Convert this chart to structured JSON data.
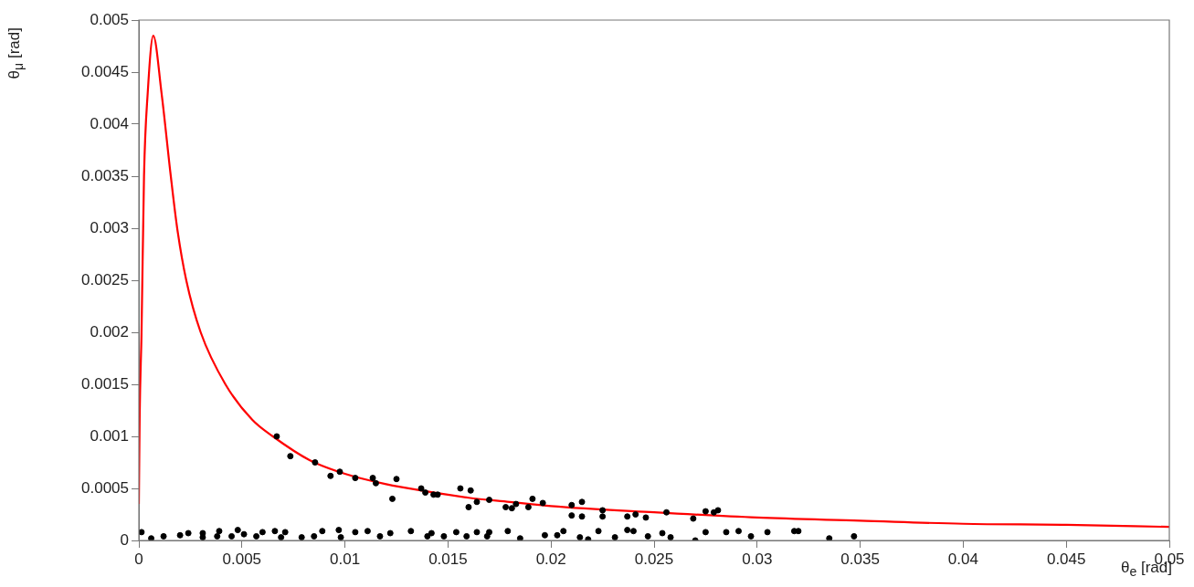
{
  "chart_data": {
    "type": "scatter",
    "xlabel": "θ$_{e}$ [rad]",
    "ylabel": "θ$_{μ}$ [rad]",
    "xlim": [
      0,
      0.05
    ],
    "ylim": [
      0,
      0.005
    ],
    "xticks": [
      0,
      0.005,
      0.01,
      0.015,
      0.02,
      0.025,
      0.03,
      0.035,
      0.04,
      0.045,
      0.05
    ],
    "yticks": [
      0,
      0.0005,
      0.001,
      0.0015,
      0.002,
      0.0025,
      0.003,
      0.0035,
      0.004,
      0.0045,
      0.005
    ],
    "grid": false,
    "legend": false,
    "series": [
      {
        "type": "line",
        "color": "#ff0000",
        "marker": "none",
        "line_style": "solid",
        "x": [
          0,
          4e-05,
          0.00013,
          0.00025,
          0.00043,
          0.0007,
          0.0011,
          0.00155,
          0.00186,
          0.0023,
          0.003,
          0.0042,
          0.0055,
          0.0065,
          0.0083,
          0.01,
          0.012,
          0.014,
          0.016,
          0.018,
          0.02,
          0.025,
          0.03,
          0.035,
          0.04,
          0.045,
          0.05
        ],
        "values": [
          0.00035,
          0.0012,
          0.002,
          0.0035,
          0.0043,
          0.00485,
          0.0043,
          0.0035,
          0.003,
          0.0025,
          0.002,
          0.0015,
          0.00116,
          0.001,
          0.00077,
          0.00064,
          0.00054,
          0.00047,
          0.00041,
          0.00037,
          0.00033,
          0.00027,
          0.00022,
          0.00019,
          0.00016,
          0.00015,
          0.00013
        ]
      },
      {
        "type": "scatter",
        "color": "#000000",
        "marker": "circle",
        "x": [
          0.00669,
          0.00735,
          0.00855,
          0.0093,
          0.00975,
          0.0105,
          0.01135,
          0.0115,
          0.0123,
          0.0125,
          0.0137,
          0.0139,
          0.0143,
          0.0145,
          0.0156,
          0.016,
          0.0161,
          0.0164,
          0.017,
          0.0178,
          0.0181,
          0.0183,
          0.0189,
          0.0191,
          0.0196,
          0.021,
          0.021,
          0.0215,
          0.0215,
          0.0225,
          0.0225,
          0.0237,
          0.0241,
          0.0246,
          0.0256,
          0.0269,
          0.0275,
          0.0279,
          0.0281,
          0.017,
          0.0179,
          0.0185,
          0.0197,
          0.0203,
          0.0206,
          0.0214,
          0.0218,
          0.0223,
          0.0231,
          0.0237,
          0.024,
          0.0247,
          0.0254,
          0.0258,
          0.027,
          0.0275,
          0.0285,
          0.0291,
          0.0297,
          0.0305,
          0.0318,
          0.032,
          0.0335,
          0.0347,
          0.00013,
          0.0006,
          0.0012,
          0.002,
          0.0024,
          0.0031,
          0.0031,
          0.0038,
          0.0039,
          0.0045,
          0.0048,
          0.0051,
          0.0057,
          0.006,
          0.0066,
          0.0069,
          0.0071,
          0.0079,
          0.0085,
          0.0089,
          0.0097,
          0.0098,
          0.0105,
          0.0111,
          0.0117,
          0.0122,
          0.0132,
          0.014,
          0.0142,
          0.0148,
          0.0154,
          0.0159,
          0.0164,
          0.0169
        ],
        "values": [
          0.001,
          0.00081,
          0.00075,
          0.00062,
          0.00066,
          0.0006,
          0.0006,
          0.00055,
          0.0004,
          0.00059,
          0.0005,
          0.00046,
          0.00044,
          0.00044,
          0.0005,
          0.00032,
          0.00048,
          0.00037,
          0.00039,
          0.00032,
          0.00031,
          0.00035,
          0.00032,
          0.0004,
          0.00036,
          0.00034,
          0.00024,
          0.00037,
          0.00023,
          0.00029,
          0.00023,
          0.00023,
          0.00025,
          0.00022,
          0.00027,
          0.00021,
          0.00028,
          0.00027,
          0.00029,
          8e-05,
          9e-05,
          2e-05,
          5e-05,
          5e-05,
          9e-05,
          3e-05,
          1e-05,
          9e-05,
          3e-05,
          0.0001,
          9e-05,
          4e-05,
          7e-05,
          3e-05,
          0,
          8e-05,
          8e-05,
          9e-05,
          4e-05,
          8e-05,
          9e-05,
          9e-05,
          2e-05,
          4e-05,
          8e-05,
          2e-05,
          4e-05,
          5e-05,
          7e-05,
          7e-05,
          3e-05,
          4e-05,
          9e-05,
          4e-05,
          0.0001,
          6e-05,
          4e-05,
          8e-05,
          9e-05,
          3e-05,
          8e-05,
          3e-05,
          4e-05,
          9e-05,
          0.0001,
          3e-05,
          8e-05,
          9e-05,
          4e-05,
          7e-05,
          9e-05,
          4e-05,
          7e-05,
          4e-05,
          8e-05,
          4e-05,
          8e-05,
          4e-05
        ]
      }
    ]
  }
}
